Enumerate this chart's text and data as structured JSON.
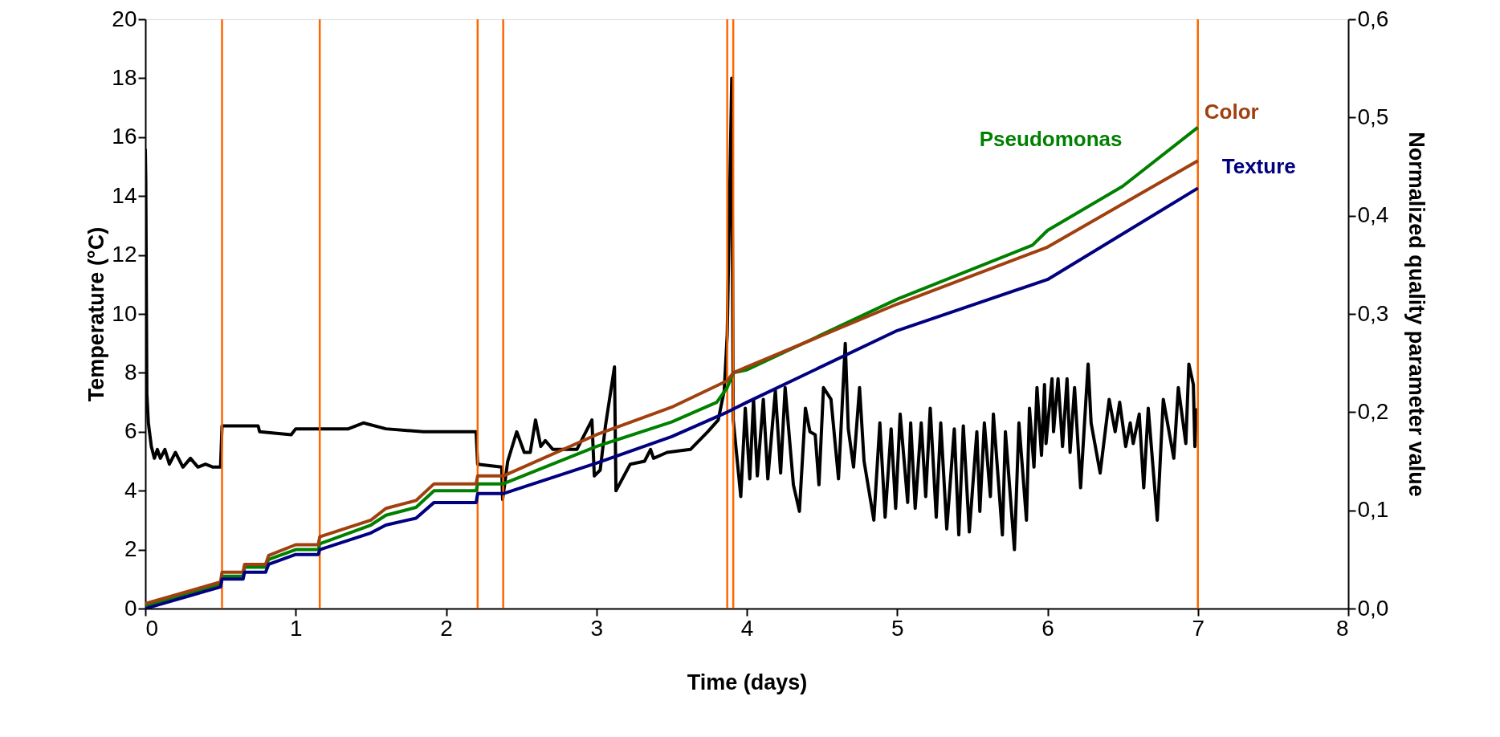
{
  "chart_data": {
    "type": "line",
    "xlabel": "Time (days)",
    "ylabel": "Temperature (°C)",
    "y2label": "Normalized quality parameter value",
    "xlim": [
      0,
      8
    ],
    "xticks": [
      0,
      1,
      2,
      3,
      4,
      5,
      6,
      7,
      8
    ],
    "ylim": [
      0,
      20
    ],
    "yticks": [
      0,
      2,
      4,
      6,
      8,
      10,
      12,
      14,
      16,
      18,
      20
    ],
    "y2lim": [
      0,
      0.6
    ],
    "y2ticks": [
      {
        "value": 0,
        "label": "0,0"
      },
      {
        "value": 0.1,
        "label": "0,1"
      },
      {
        "value": 0.2,
        "label": "0,2"
      },
      {
        "value": 0.3,
        "label": "0,3"
      },
      {
        "value": 0.4,
        "label": "0,4"
      },
      {
        "value": 0.5,
        "label": "0,5"
      },
      {
        "value": 0.6,
        "label": "0,6"
      }
    ],
    "grid": false,
    "legend": false,
    "marker": "none",
    "line_style": "solid",
    "series": [
      {
        "color": "#000000",
        "axis": "y",
        "x": [
          0,
          0.003,
          0.01,
          0.02,
          0.04,
          0.06,
          0.08,
          0.1,
          0.13,
          0.16,
          0.2,
          0.25,
          0.3,
          0.35,
          0.4,
          0.45,
          0.5,
          0.51,
          0.75,
          0.76,
          0.97,
          1.0,
          1.15,
          1.35,
          1.45,
          1.6,
          1.85,
          2.2,
          2.21,
          2.37,
          2.376,
          2.41,
          2.47,
          2.52,
          2.56,
          2.595,
          2.63,
          2.66,
          2.71,
          2.805,
          2.87,
          2.97,
          2.986,
          3.025,
          3.06,
          3.12,
          3.13,
          3.225,
          3.32,
          3.36,
          3.38,
          3.47,
          3.625,
          3.74,
          3.81,
          3.85,
          3.87,
          3.9,
          3.91,
          3.96,
          3.99,
          4.02,
          4.045,
          4.07,
          4.11,
          4.14,
          4.19,
          4.225,
          4.255,
          4.31,
          4.35,
          4.39,
          4.42,
          4.455,
          4.48,
          4.51,
          4.56,
          4.61,
          4.655,
          4.675,
          4.71,
          4.75,
          4.78,
          4.845,
          4.885,
          4.92,
          4.96,
          4.99,
          5.02,
          5.07,
          5.09,
          5.12,
          5.16,
          5.19,
          5.22,
          5.26,
          5.29,
          5.33,
          5.38,
          5.41,
          5.44,
          5.48,
          5.53,
          5.55,
          5.58,
          5.62,
          5.64,
          5.7,
          5.72,
          5.78,
          5.81,
          5.86,
          5.88,
          5.91,
          5.93,
          5.96,
          5.98,
          5.99,
          6.03,
          6.04,
          6.07,
          6.1,
          6.13,
          6.15,
          6.18,
          6.22,
          6.27,
          6.29,
          6.35,
          6.41,
          6.45,
          6.48,
          6.52,
          6.55,
          6.57,
          6.61,
          6.64,
          6.67,
          6.73,
          6.77,
          6.84,
          6.87,
          6.92,
          6.94,
          6.97,
          6.98,
          6.99
        ],
        "values": [
          15.6,
          14.5,
          7.3,
          6.3,
          5.5,
          5.1,
          5.4,
          5.1,
          5.4,
          4.9,
          5.3,
          4.8,
          5.1,
          4.8,
          4.9,
          4.8,
          4.8,
          6.2,
          6.2,
          6.0,
          5.9,
          6.1,
          6.1,
          6.1,
          6.3,
          6.1,
          6.0,
          6.0,
          4.9,
          4.8,
          3.7,
          5.0,
          6.0,
          5.3,
          5.3,
          6.4,
          5.5,
          5.7,
          5.4,
          5.4,
          5.4,
          6.4,
          4.5,
          4.7,
          6.2,
          8.2,
          4.0,
          4.9,
          5.0,
          5.4,
          5.1,
          5.3,
          5.4,
          6.0,
          6.4,
          7.4,
          9.3,
          18.0,
          6.4,
          3.8,
          6.8,
          4.4,
          7.1,
          4.5,
          7.1,
          4.4,
          7.4,
          4.6,
          7.5,
          4.2,
          3.3,
          6.8,
          6.0,
          5.9,
          4.2,
          7.5,
          7.1,
          4.4,
          9.0,
          6.1,
          4.8,
          7.5,
          5.0,
          3.0,
          6.3,
          3.1,
          6.1,
          3.4,
          6.6,
          3.6,
          6.3,
          3.4,
          6.3,
          3.8,
          6.8,
          3.1,
          6.3,
          2.7,
          6.1,
          2.5,
          6.2,
          2.6,
          6.0,
          3.3,
          6.3,
          3.8,
          6.6,
          2.5,
          6.0,
          2.0,
          6.3,
          3.0,
          6.8,
          4.8,
          7.5,
          5.2,
          7.6,
          5.6,
          7.8,
          6.0,
          7.8,
          5.5,
          7.8,
          5.3,
          7.5,
          4.1,
          8.3,
          6.3,
          4.6,
          7.1,
          6.0,
          7.0,
          5.5,
          6.3,
          5.6,
          6.6,
          4.1,
          6.8,
          3.0,
          7.1,
          5.1,
          7.5,
          5.6,
          8.3,
          7.6,
          5.5,
          6.8
        ]
      },
      {
        "name": "Pseudomonas",
        "color": "#008000",
        "axis": "y2",
        "x": [
          0,
          0.5,
          0.51,
          0.65,
          0.66,
          0.8,
          0.82,
          1.0,
          1.15,
          1.16,
          1.5,
          1.6,
          1.8,
          1.92,
          2.2,
          2.21,
          2.38,
          3.0,
          3.5,
          3.8,
          3.87,
          3.91,
          4.0,
          5.0,
          5.9,
          6.0,
          6.5,
          7.0
        ],
        "values": [
          0.003,
          0.025,
          0.033,
          0.033,
          0.042,
          0.042,
          0.05,
          0.06,
          0.06,
          0.066,
          0.085,
          0.095,
          0.103,
          0.12,
          0.12,
          0.127,
          0.127,
          0.165,
          0.19,
          0.21,
          0.225,
          0.24,
          0.243,
          0.315,
          0.37,
          0.385,
          0.43,
          0.49
        ]
      },
      {
        "name": "Color",
        "color": "#a0400f",
        "axis": "y2",
        "x": [
          0,
          0.5,
          0.51,
          0.65,
          0.66,
          0.8,
          0.82,
          1.0,
          1.15,
          1.16,
          1.5,
          1.6,
          1.8,
          1.92,
          2.2,
          2.21,
          2.38,
          3.0,
          3.5,
          3.87,
          3.91,
          4.0,
          5.0,
          6.0,
          7.0
        ],
        "values": [
          0.005,
          0.027,
          0.037,
          0.037,
          0.045,
          0.045,
          0.054,
          0.065,
          0.065,
          0.073,
          0.09,
          0.102,
          0.11,
          0.127,
          0.127,
          0.135,
          0.135,
          0.177,
          0.205,
          0.232,
          0.24,
          0.246,
          0.31,
          0.368,
          0.456
        ]
      },
      {
        "name": "Texture",
        "color": "#000080",
        "axis": "y2",
        "x": [
          0,
          0.5,
          0.51,
          0.65,
          0.66,
          0.8,
          0.82,
          1.0,
          1.15,
          1.16,
          1.5,
          1.6,
          1.8,
          1.92,
          2.2,
          2.21,
          2.38,
          3.0,
          3.5,
          3.87,
          4.0,
          5.0,
          6.0,
          7.0
        ],
        "values": [
          0.0,
          0.022,
          0.03,
          0.03,
          0.037,
          0.037,
          0.045,
          0.055,
          0.055,
          0.06,
          0.077,
          0.085,
          0.092,
          0.108,
          0.108,
          0.117,
          0.117,
          0.148,
          0.175,
          0.2,
          0.21,
          0.283,
          0.335,
          0.428
        ]
      }
    ],
    "ref_lines": [
      {
        "axis": "x",
        "value": 0.51,
        "color": "#ff6600"
      },
      {
        "axis": "x",
        "value": 1.16,
        "color": "#ff6600"
      },
      {
        "axis": "x",
        "value": 2.21,
        "color": "#ff6600"
      },
      {
        "axis": "x",
        "value": 2.38,
        "color": "#ff6600"
      },
      {
        "axis": "x",
        "value": 3.87,
        "color": "#ff6600"
      },
      {
        "axis": "x",
        "value": 3.91,
        "color": "#ff6600"
      },
      {
        "axis": "x",
        "value": 7.0,
        "color": "#ff6600"
      }
    ]
  }
}
